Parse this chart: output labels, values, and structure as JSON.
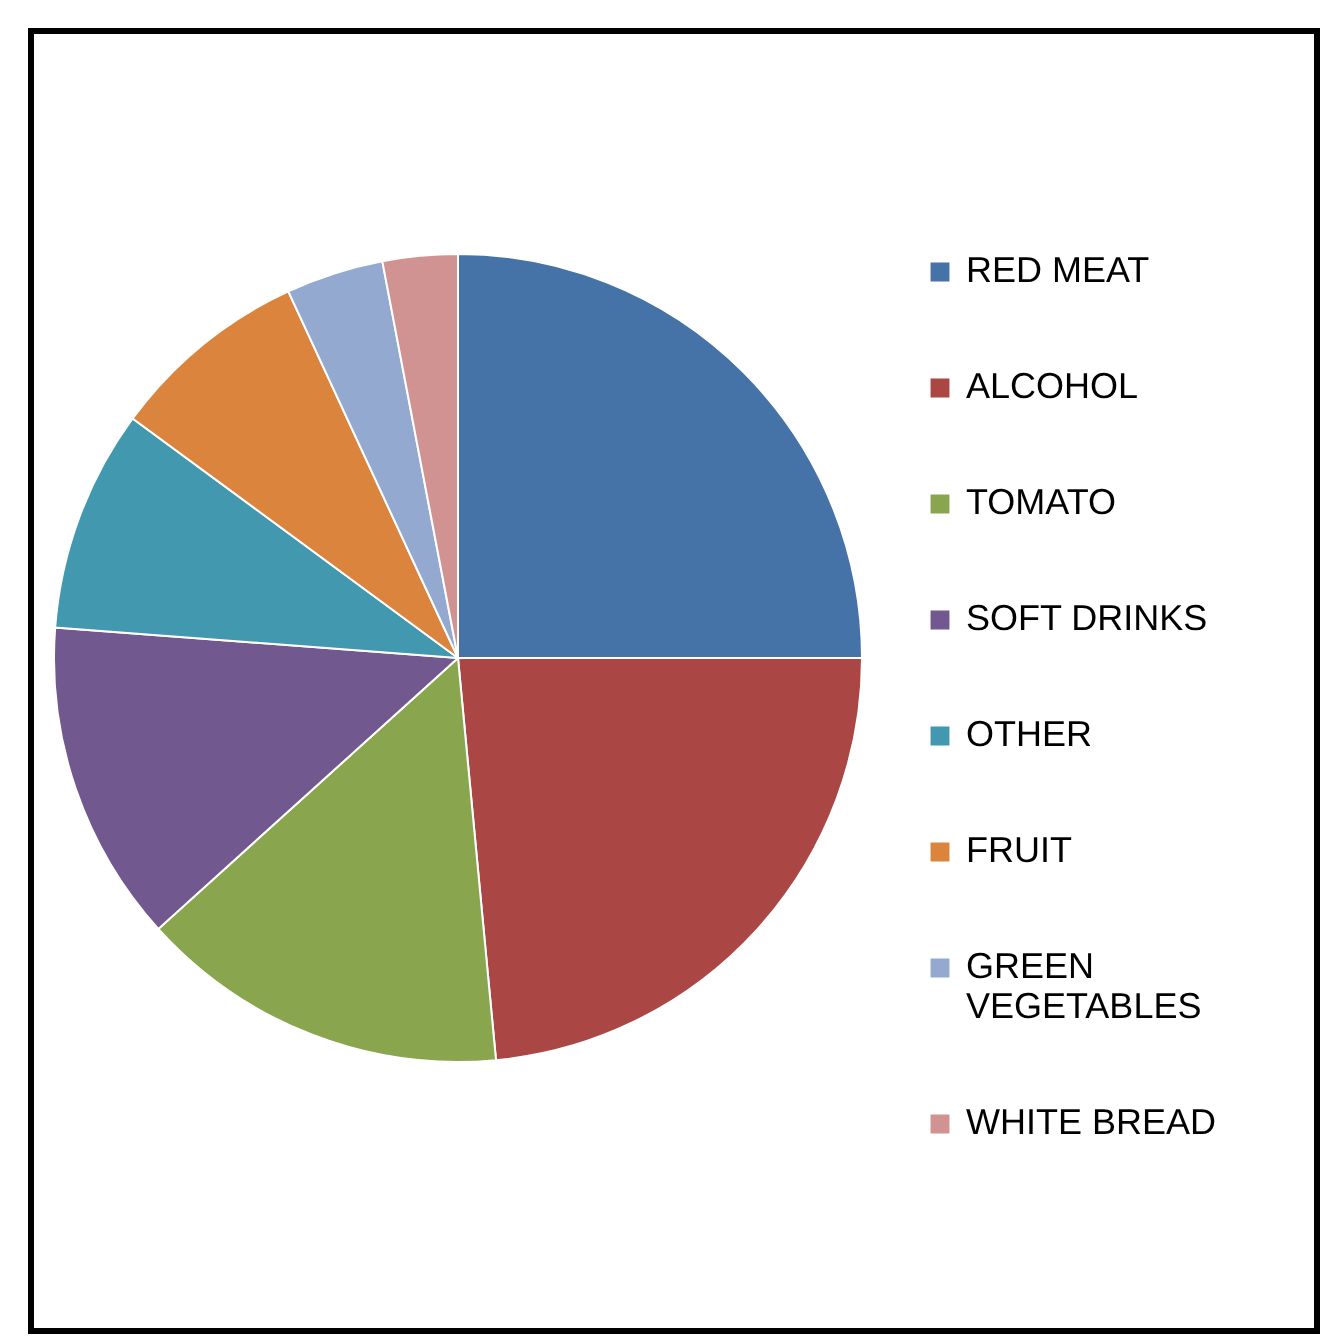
{
  "chart_data": {
    "type": "pie",
    "categories": [
      "RED MEAT",
      "ALCOHOL",
      "TOMATO",
      "SOFT DRINKS",
      "OTHER",
      "FRUIT",
      "GREEN VEGETABLES",
      "WHITE BREAD"
    ],
    "values": [
      25,
      23.5,
      14.8,
      12.9,
      8.9,
      8,
      3.9,
      3
    ],
    "colors": [
      "#4572a7",
      "#aa4643",
      "#89a54e",
      "#71588f",
      "#4198af",
      "#db843d",
      "#93a9cf",
      "#d19392"
    ],
    "legend": "right"
  }
}
